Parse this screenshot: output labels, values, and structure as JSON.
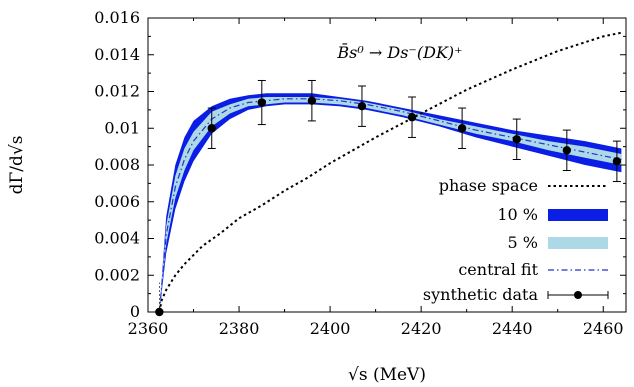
{
  "chart_data": {
    "type": "line",
    "xlabel": "√s (MeV)",
    "ylabel": "dΓ/d√s",
    "annotation": "B̄s⁰ → Ds⁻(DK)⁺",
    "xlim": [
      2360,
      2465
    ],
    "ylim": [
      0,
      0.016
    ],
    "xticks": [
      2360,
      2380,
      2400,
      2420,
      2440,
      2460
    ],
    "xtick_labels": [
      "2360",
      "2380",
      "2400",
      "2420",
      "2440",
      "2460"
    ],
    "yticks": [
      0,
      0.002,
      0.004,
      0.006,
      0.008,
      0.01,
      0.012,
      0.014,
      0.016
    ],
    "ytick_labels": [
      "0",
      "0.002",
      "0.004",
      "0.006",
      "0.008",
      "0.01",
      "0.012",
      "0.014",
      "0.016"
    ],
    "grid": false,
    "legend_position": "bottom-right",
    "legend": [
      {
        "label": "phase space",
        "style": "dotted-line",
        "color": "#000000"
      },
      {
        "label": "10 %",
        "style": "band",
        "color": "#0a1ee6"
      },
      {
        "label": "5 %",
        "style": "band",
        "color": "#add8e6"
      },
      {
        "label": "central fit",
        "style": "dash-dot-line",
        "color": "#2233cc"
      },
      {
        "label": "synthetic data",
        "style": "errorbar-point",
        "color": "#000000"
      }
    ],
    "threshold_x": 2362.5,
    "series": {
      "phase_space": {
        "x": [
          2362.5,
          2363,
          2364,
          2366,
          2368,
          2372,
          2376,
          2380,
          2385,
          2390,
          2395,
          2400,
          2405,
          2410,
          2420,
          2430,
          2440,
          2450,
          2460,
          2464
        ],
        "y": [
          0,
          0.00065,
          0.0012,
          0.002,
          0.0026,
          0.0036,
          0.0043,
          0.0051,
          0.0058,
          0.0066,
          0.0073,
          0.0081,
          0.0088,
          0.0095,
          0.0108,
          0.0121,
          0.0132,
          0.0142,
          0.015,
          0.0152
        ]
      },
      "central_fit": {
        "x": [
          2362.5,
          2364,
          2366,
          2368,
          2370,
          2374,
          2378,
          2382,
          2386,
          2390,
          2396,
          2402,
          2408,
          2416,
          2424,
          2432,
          2440,
          2448,
          2456,
          2464
        ],
        "y": [
          0,
          0.0042,
          0.0068,
          0.0083,
          0.0093,
          0.0105,
          0.0111,
          0.0114,
          0.0115,
          0.0116,
          0.0116,
          0.0115,
          0.0113,
          0.0109,
          0.0104,
          0.0099,
          0.0095,
          0.0091,
          0.0087,
          0.0083
        ]
      },
      "band_10pct": {
        "x": [
          2362.5,
          2364,
          2366,
          2368,
          2370,
          2374,
          2378,
          2382,
          2386,
          2390,
          2396,
          2402,
          2408,
          2416,
          2424,
          2432,
          2440,
          2448,
          2456,
          2464
        ],
        "upper": [
          0,
          0.0052,
          0.008,
          0.0095,
          0.0104,
          0.0112,
          0.0116,
          0.0118,
          0.0119,
          0.0119,
          0.0119,
          0.0117,
          0.0115,
          0.0111,
          0.0107,
          0.0103,
          0.0099,
          0.0096,
          0.0093,
          0.0089
        ],
        "lower": [
          0,
          0.0032,
          0.0056,
          0.0071,
          0.0082,
          0.0097,
          0.0105,
          0.011,
          0.0112,
          0.0113,
          0.0113,
          0.0112,
          0.011,
          0.0106,
          0.0101,
          0.0095,
          0.009,
          0.0085,
          0.008,
          0.0076
        ]
      },
      "band_5pct": {
        "x": [
          2362.5,
          2364,
          2366,
          2368,
          2370,
          2374,
          2378,
          2382,
          2386,
          2390,
          2396,
          2402,
          2408,
          2416,
          2424,
          2432,
          2440,
          2448,
          2456,
          2464
        ],
        "upper": [
          0,
          0.0047,
          0.0074,
          0.0089,
          0.0098,
          0.0109,
          0.0113,
          0.0116,
          0.0117,
          0.0117,
          0.0117,
          0.0116,
          0.0114,
          0.011,
          0.0105,
          0.0101,
          0.0097,
          0.0093,
          0.009,
          0.0086
        ],
        "lower": [
          0,
          0.0037,
          0.0062,
          0.0077,
          0.0088,
          0.0101,
          0.0108,
          0.0112,
          0.0113,
          0.0114,
          0.0114,
          0.0113,
          0.0111,
          0.0107,
          0.0102,
          0.0097,
          0.0093,
          0.0088,
          0.0084,
          0.008
        ]
      },
      "synthetic_data": {
        "x": [
          2362.5,
          2374,
          2385,
          2396,
          2407,
          2418,
          2429,
          2441,
          2452,
          2463
        ],
        "y": [
          0,
          0.01,
          0.0114,
          0.0115,
          0.0112,
          0.0106,
          0.01,
          0.0094,
          0.0088,
          0.0082
        ],
        "err": [
          0,
          0.0011,
          0.0012,
          0.0011,
          0.0011,
          0.0011,
          0.0011,
          0.0011,
          0.0011,
          0.0011
        ]
      }
    }
  }
}
